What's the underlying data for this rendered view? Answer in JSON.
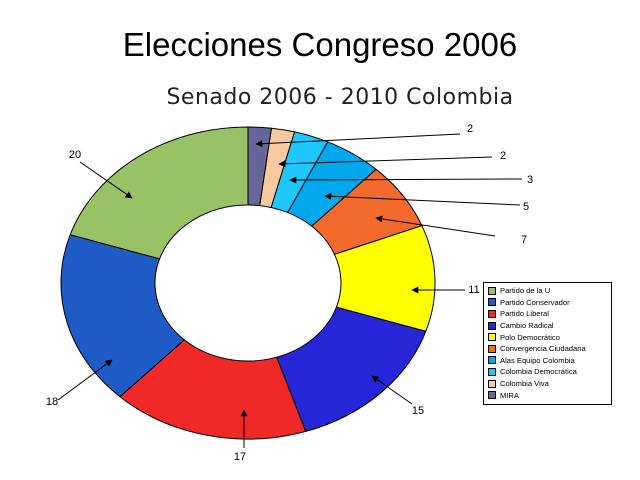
{
  "title": "Elecciones Congreso 2006",
  "chart_data": {
    "type": "pie",
    "variant": "donut",
    "title": "Senado 2006 - 2010 Colombia",
    "legend_placement": "bottom-right",
    "categories": [
      "Partido de la U",
      "Partido Conservador",
      "Partido Liberal",
      "Cambio Radical",
      "Polo Democrático",
      "Convergencia Ciudadana",
      "Alas Equipo Colombia",
      "Colombia Democrática",
      "Colombia Viva",
      "MIRA"
    ],
    "values": [
      20,
      18,
      17,
      15,
      11,
      7,
      5,
      3,
      2,
      2
    ],
    "data_labels": [
      "20",
      "18",
      "17",
      "15",
      "11",
      "7",
      "5",
      "3",
      "2",
      "2"
    ],
    "colors": [
      "#99c266",
      "#1e5bc6",
      "#f02828",
      "#2626d8",
      "#ffff00",
      "#f26b2b",
      "#00a8ee",
      "#1ec8ff",
      "#f7c99e",
      "#666699"
    ]
  }
}
